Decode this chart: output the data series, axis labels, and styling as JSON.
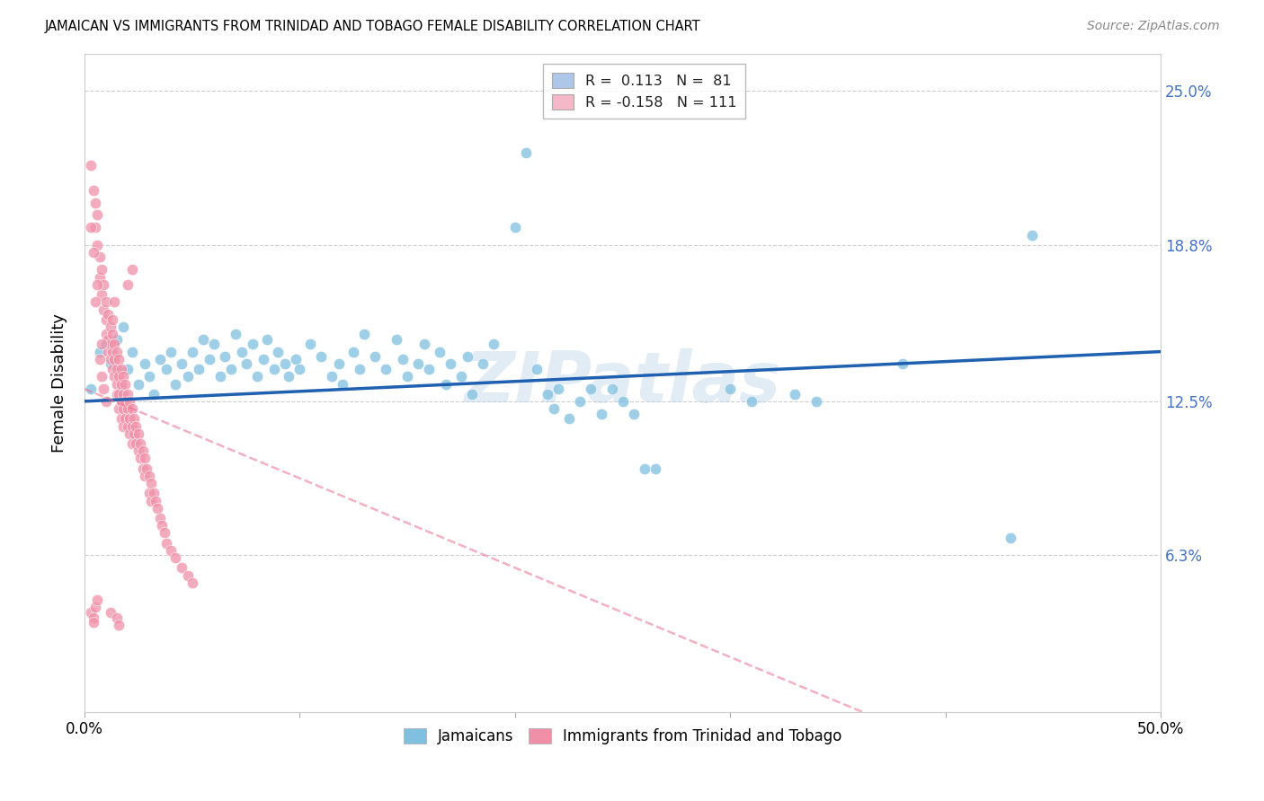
{
  "title": "JAMAICAN VS IMMIGRANTS FROM TRINIDAD AND TOBAGO FEMALE DISABILITY CORRELATION CHART",
  "source": "Source: ZipAtlas.com",
  "ylabel": "Female Disability",
  "ytick_labels": [
    "6.3%",
    "12.5%",
    "18.8%",
    "25.0%"
  ],
  "ytick_values": [
    0.063,
    0.125,
    0.188,
    0.25
  ],
  "xlim": [
    0.0,
    0.5
  ],
  "ylim": [
    0.0,
    0.265
  ],
  "legend_labels_bottom": [
    "Jamaicans",
    "Immigrants from Trinidad and Tobago"
  ],
  "jamaicans_color": "#7fbfdf",
  "trinidadians_color": "#f090a8",
  "line_jamaicans_color": "#2060b0",
  "line_trinidadians_color": "#e87090",
  "background_color": "#ffffff",
  "grid_color": "#c8c8c8",
  "watermark": "ZIPatlas",
  "jamaicans_points": [
    [
      0.003,
      0.13
    ],
    [
      0.007,
      0.145
    ],
    [
      0.01,
      0.148
    ],
    [
      0.012,
      0.14
    ],
    [
      0.015,
      0.15
    ],
    [
      0.018,
      0.155
    ],
    [
      0.02,
      0.138
    ],
    [
      0.022,
      0.145
    ],
    [
      0.025,
      0.132
    ],
    [
      0.028,
      0.14
    ],
    [
      0.03,
      0.135
    ],
    [
      0.032,
      0.128
    ],
    [
      0.035,
      0.142
    ],
    [
      0.038,
      0.138
    ],
    [
      0.04,
      0.145
    ],
    [
      0.042,
      0.132
    ],
    [
      0.045,
      0.14
    ],
    [
      0.048,
      0.135
    ],
    [
      0.05,
      0.145
    ],
    [
      0.053,
      0.138
    ],
    [
      0.055,
      0.15
    ],
    [
      0.058,
      0.142
    ],
    [
      0.06,
      0.148
    ],
    [
      0.063,
      0.135
    ],
    [
      0.065,
      0.143
    ],
    [
      0.068,
      0.138
    ],
    [
      0.07,
      0.152
    ],
    [
      0.073,
      0.145
    ],
    [
      0.075,
      0.14
    ],
    [
      0.078,
      0.148
    ],
    [
      0.08,
      0.135
    ],
    [
      0.083,
      0.142
    ],
    [
      0.085,
      0.15
    ],
    [
      0.088,
      0.138
    ],
    [
      0.09,
      0.145
    ],
    [
      0.093,
      0.14
    ],
    [
      0.095,
      0.135
    ],
    [
      0.098,
      0.142
    ],
    [
      0.1,
      0.138
    ],
    [
      0.105,
      0.148
    ],
    [
      0.11,
      0.143
    ],
    [
      0.115,
      0.135
    ],
    [
      0.118,
      0.14
    ],
    [
      0.12,
      0.132
    ],
    [
      0.125,
      0.145
    ],
    [
      0.128,
      0.138
    ],
    [
      0.13,
      0.152
    ],
    [
      0.135,
      0.143
    ],
    [
      0.14,
      0.138
    ],
    [
      0.145,
      0.15
    ],
    [
      0.148,
      0.142
    ],
    [
      0.15,
      0.135
    ],
    [
      0.155,
      0.14
    ],
    [
      0.158,
      0.148
    ],
    [
      0.16,
      0.138
    ],
    [
      0.165,
      0.145
    ],
    [
      0.168,
      0.132
    ],
    [
      0.17,
      0.14
    ],
    [
      0.175,
      0.135
    ],
    [
      0.178,
      0.143
    ],
    [
      0.18,
      0.128
    ],
    [
      0.185,
      0.14
    ],
    [
      0.19,
      0.148
    ],
    [
      0.2,
      0.195
    ],
    [
      0.205,
      0.225
    ],
    [
      0.21,
      0.138
    ],
    [
      0.215,
      0.128
    ],
    [
      0.218,
      0.122
    ],
    [
      0.22,
      0.13
    ],
    [
      0.225,
      0.118
    ],
    [
      0.23,
      0.125
    ],
    [
      0.235,
      0.13
    ],
    [
      0.24,
      0.12
    ],
    [
      0.245,
      0.13
    ],
    [
      0.25,
      0.125
    ],
    [
      0.255,
      0.12
    ],
    [
      0.26,
      0.098
    ],
    [
      0.265,
      0.098
    ],
    [
      0.3,
      0.13
    ],
    [
      0.31,
      0.125
    ],
    [
      0.33,
      0.128
    ],
    [
      0.34,
      0.125
    ],
    [
      0.38,
      0.14
    ],
    [
      0.44,
      0.192
    ],
    [
      0.43,
      0.07
    ]
  ],
  "trinidadians_points": [
    [
      0.003,
      0.22
    ],
    [
      0.004,
      0.21
    ],
    [
      0.005,
      0.205
    ],
    [
      0.005,
      0.195
    ],
    [
      0.006,
      0.2
    ],
    [
      0.006,
      0.188
    ],
    [
      0.007,
      0.183
    ],
    [
      0.007,
      0.175
    ],
    [
      0.008,
      0.178
    ],
    [
      0.008,
      0.168
    ],
    [
      0.009,
      0.172
    ],
    [
      0.009,
      0.162
    ],
    [
      0.01,
      0.165
    ],
    [
      0.01,
      0.158
    ],
    [
      0.01,
      0.152
    ],
    [
      0.011,
      0.16
    ],
    [
      0.011,
      0.15
    ],
    [
      0.011,
      0.145
    ],
    [
      0.012,
      0.155
    ],
    [
      0.012,
      0.148
    ],
    [
      0.012,
      0.142
    ],
    [
      0.013,
      0.152
    ],
    [
      0.013,
      0.145
    ],
    [
      0.013,
      0.138
    ],
    [
      0.014,
      0.148
    ],
    [
      0.014,
      0.142
    ],
    [
      0.014,
      0.135
    ],
    [
      0.015,
      0.145
    ],
    [
      0.015,
      0.138
    ],
    [
      0.015,
      0.132
    ],
    [
      0.015,
      0.128
    ],
    [
      0.016,
      0.142
    ],
    [
      0.016,
      0.135
    ],
    [
      0.016,
      0.128
    ],
    [
      0.016,
      0.122
    ],
    [
      0.017,
      0.138
    ],
    [
      0.017,
      0.132
    ],
    [
      0.017,
      0.125
    ],
    [
      0.017,
      0.118
    ],
    [
      0.018,
      0.135
    ],
    [
      0.018,
      0.128
    ],
    [
      0.018,
      0.122
    ],
    [
      0.018,
      0.115
    ],
    [
      0.019,
      0.132
    ],
    [
      0.019,
      0.125
    ],
    [
      0.019,
      0.118
    ],
    [
      0.02,
      0.128
    ],
    [
      0.02,
      0.122
    ],
    [
      0.02,
      0.115
    ],
    [
      0.021,
      0.125
    ],
    [
      0.021,
      0.118
    ],
    [
      0.021,
      0.112
    ],
    [
      0.022,
      0.122
    ],
    [
      0.022,
      0.115
    ],
    [
      0.022,
      0.108
    ],
    [
      0.023,
      0.118
    ],
    [
      0.023,
      0.112
    ],
    [
      0.024,
      0.115
    ],
    [
      0.024,
      0.108
    ],
    [
      0.025,
      0.112
    ],
    [
      0.025,
      0.105
    ],
    [
      0.026,
      0.108
    ],
    [
      0.026,
      0.102
    ],
    [
      0.027,
      0.105
    ],
    [
      0.027,
      0.098
    ],
    [
      0.028,
      0.102
    ],
    [
      0.028,
      0.095
    ],
    [
      0.029,
      0.098
    ],
    [
      0.03,
      0.095
    ],
    [
      0.03,
      0.088
    ],
    [
      0.031,
      0.092
    ],
    [
      0.031,
      0.085
    ],
    [
      0.032,
      0.088
    ],
    [
      0.033,
      0.085
    ],
    [
      0.034,
      0.082
    ],
    [
      0.035,
      0.078
    ],
    [
      0.036,
      0.075
    ],
    [
      0.037,
      0.072
    ],
    [
      0.038,
      0.068
    ],
    [
      0.04,
      0.065
    ],
    [
      0.042,
      0.062
    ],
    [
      0.045,
      0.058
    ],
    [
      0.048,
      0.055
    ],
    [
      0.05,
      0.052
    ],
    [
      0.003,
      0.04
    ],
    [
      0.004,
      0.038
    ],
    [
      0.004,
      0.036
    ],
    [
      0.005,
      0.042
    ],
    [
      0.006,
      0.045
    ],
    [
      0.012,
      0.04
    ],
    [
      0.015,
      0.038
    ],
    [
      0.016,
      0.035
    ],
    [
      0.008,
      0.135
    ],
    [
      0.009,
      0.13
    ],
    [
      0.01,
      0.125
    ],
    [
      0.007,
      0.142
    ],
    [
      0.008,
      0.148
    ],
    [
      0.013,
      0.158
    ],
    [
      0.014,
      0.165
    ],
    [
      0.02,
      0.172
    ],
    [
      0.022,
      0.178
    ],
    [
      0.005,
      0.165
    ],
    [
      0.006,
      0.172
    ],
    [
      0.004,
      0.185
    ],
    [
      0.003,
      0.195
    ]
  ]
}
